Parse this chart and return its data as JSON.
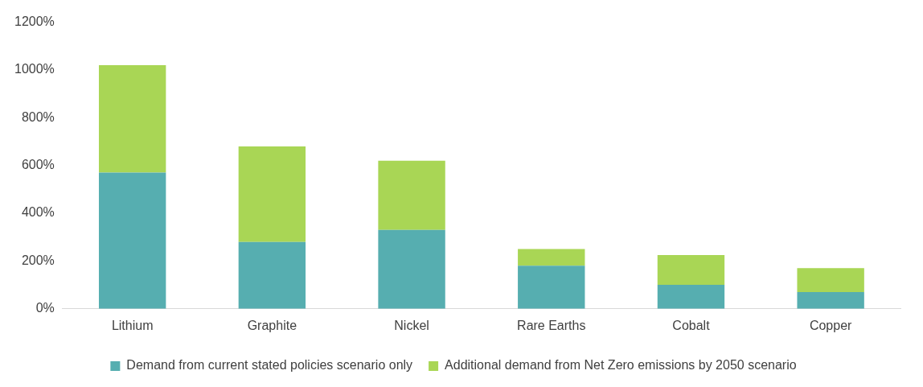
{
  "chart_data": {
    "type": "bar",
    "stacked": true,
    "categories": [
      "Lithium",
      "Graphite",
      "Nickel",
      "Rare Earths",
      "Cobalt",
      "Copper"
    ],
    "series": [
      {
        "name": "Demand from current stated policies scenario only",
        "color": "#56aeb0",
        "values": [
          570,
          280,
          330,
          180,
          100,
          70
        ]
      },
      {
        "name": "Additional demand from Net Zero emissions by 2050 scenario",
        "color": "#a9d655",
        "values": [
          450,
          400,
          290,
          70,
          125,
          100
        ]
      }
    ],
    "ylim": [
      0,
      1200
    ],
    "yticks": [
      {
        "value": 0,
        "label": "0%"
      },
      {
        "value": 200,
        "label": "200%"
      },
      {
        "value": 400,
        "label": "400%"
      },
      {
        "value": 600,
        "label": "600%"
      },
      {
        "value": 800,
        "label": "800%"
      },
      {
        "value": 1000,
        "label": "1000%"
      },
      {
        "value": 1200,
        "label": "1200%"
      }
    ],
    "grid": false,
    "legend": "bottom"
  }
}
